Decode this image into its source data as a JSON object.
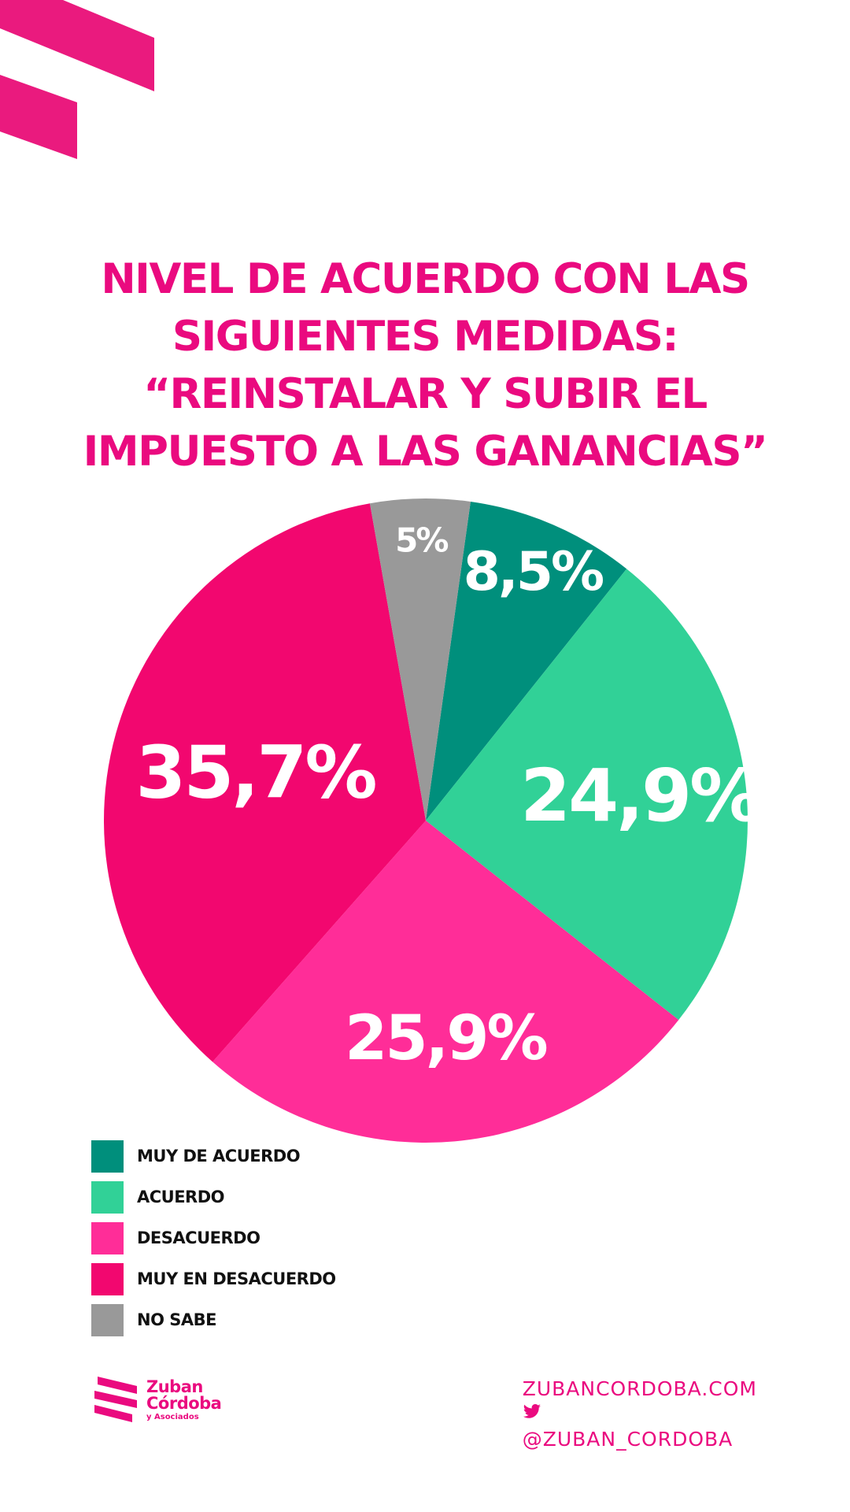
{
  "title": {
    "lines": [
      "NIVEL DE ACUERDO CON LAS",
      "SIGUIENTES MEDIDAS:",
      "“REINSTALAR Y SUBIR EL",
      "IMPUESTO A LAS GANANCIAS”"
    ]
  },
  "chart_data": {
    "type": "pie",
    "legend_position": "bottom-left",
    "slices": [
      {
        "name": "MUY DE ACUERDO",
        "value": 8.5,
        "label": "8,5%",
        "color": "#008f7c"
      },
      {
        "name": "ACUERDO",
        "value": 24.9,
        "label": "24,9%",
        "color": "#31d197"
      },
      {
        "name": "DESACUERDO",
        "value": 25.9,
        "label": "25,9%",
        "color": "#ff2d98"
      },
      {
        "name": "MUY EN DESACUERDO",
        "value": 35.7,
        "label": "35,7%",
        "color": "#f2076f"
      },
      {
        "name": "NO SABE",
        "value": 5,
        "label": "5%",
        "color": "#999999"
      }
    ]
  },
  "legend": {
    "items": [
      {
        "label": "MUY DE ACUERDO",
        "color": "#008f7c"
      },
      {
        "label": "ACUERDO",
        "color": "#31d197"
      },
      {
        "label": "DESACUERDO",
        "color": "#ff2d98"
      },
      {
        "label": "MUY EN DESACUERDO",
        "color": "#f2076f"
      },
      {
        "label": "NO SABE",
        "color": "#999999"
      }
    ]
  },
  "footer": {
    "logo_line1": "Zuban",
    "logo_line2": "Córdoba",
    "logo_sub": "y Asociados",
    "website": "ZUBANCORDOBA.COM",
    "twitter": "@ZUBAN_CORDOBA",
    "twitter_icon": "twitter-bird-icon"
  },
  "colors": {
    "brand": "#ea0a7f"
  }
}
